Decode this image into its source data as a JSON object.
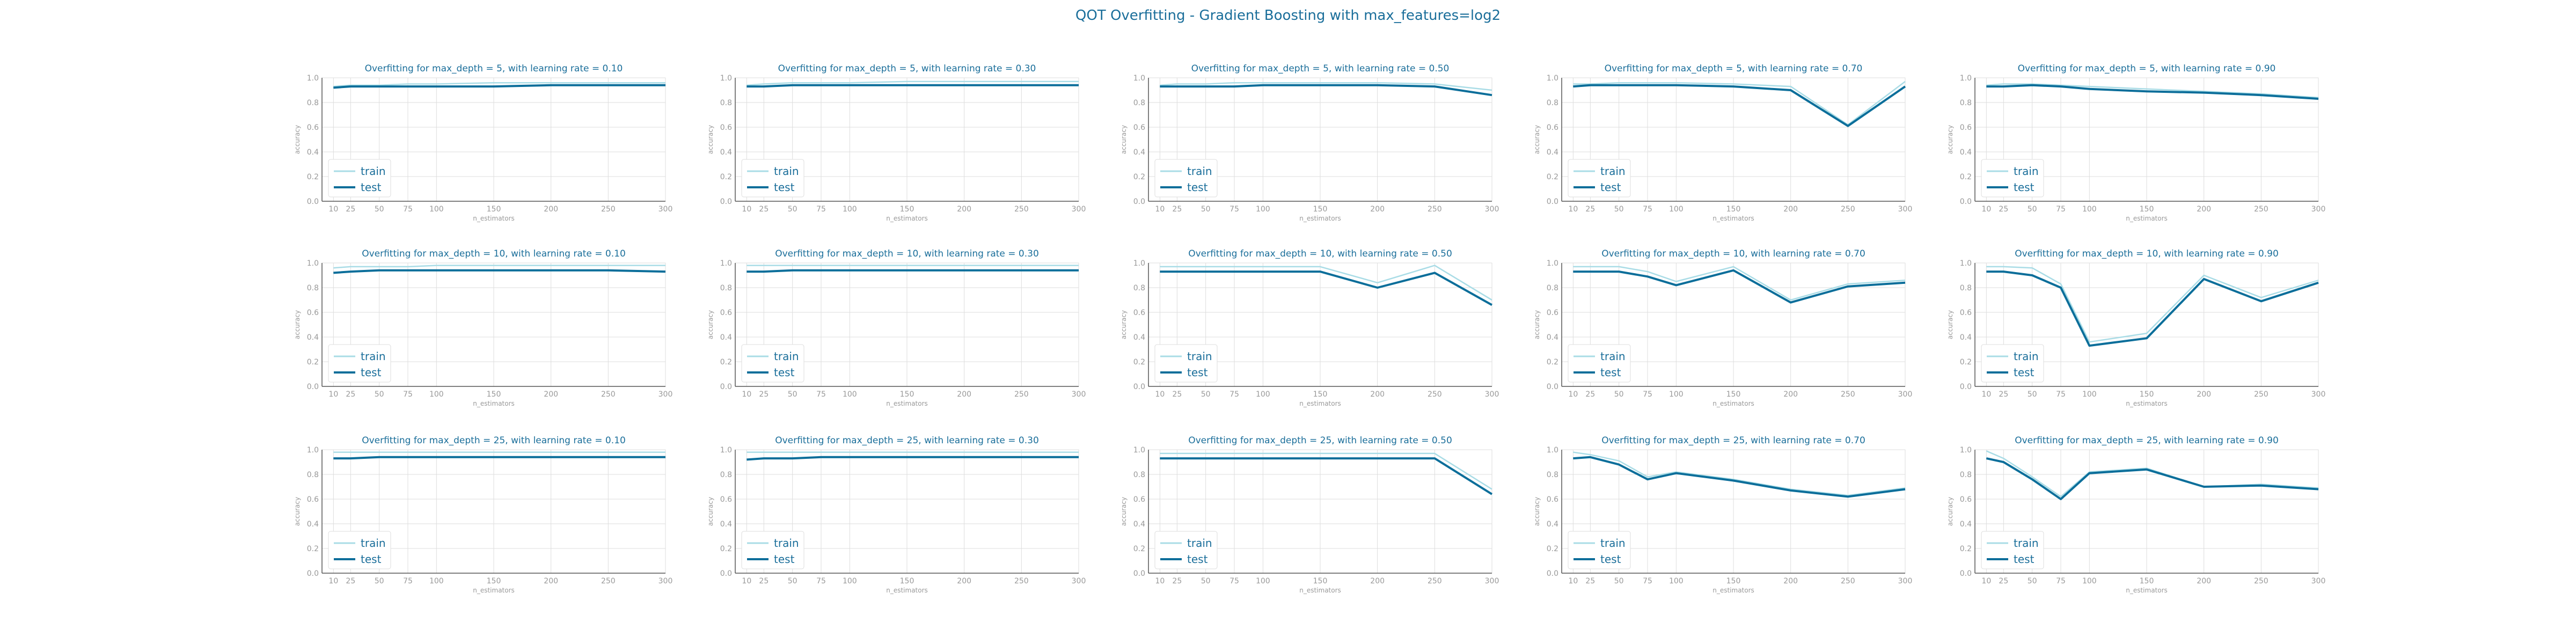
{
  "title": "QOT Overfitting - Gradient Boosting with max_features=log2",
  "colors": {
    "train": "#a9dce6",
    "test": "#0b6e9a",
    "title": "#1a6e9a",
    "axis_text": "#999999",
    "grid": "#dddddd"
  },
  "chart_data": [
    {
      "type": "line",
      "title": "Overfitting for max_depth = 5, with learning rate = 0.10",
      "xlabel": "n_estimators",
      "ylabel": "accuracy",
      "x": [
        10,
        25,
        50,
        75,
        100,
        150,
        200,
        250,
        300
      ],
      "ylim": [
        0.0,
        1.0
      ],
      "grid": true,
      "legend": "lower-left",
      "series": [
        {
          "name": "train",
          "values": [
            0.93,
            0.94,
            0.94,
            0.95,
            0.95,
            0.96,
            0.96,
            0.96,
            0.96
          ]
        },
        {
          "name": "test",
          "values": [
            0.92,
            0.93,
            0.93,
            0.93,
            0.93,
            0.93,
            0.94,
            0.94,
            0.94
          ]
        }
      ]
    },
    {
      "type": "line",
      "title": "Overfitting for max_depth = 5, with learning rate = 0.30",
      "xlabel": "n_estimators",
      "ylabel": "accuracy",
      "x": [
        10,
        25,
        50,
        75,
        100,
        150,
        200,
        250,
        300
      ],
      "ylim": [
        0.0,
        1.0
      ],
      "grid": true,
      "legend": "lower-left",
      "series": [
        {
          "name": "train",
          "values": [
            0.94,
            0.95,
            0.96,
            0.96,
            0.96,
            0.97,
            0.97,
            0.97,
            0.97
          ]
        },
        {
          "name": "test",
          "values": [
            0.93,
            0.93,
            0.94,
            0.94,
            0.94,
            0.94,
            0.94,
            0.94,
            0.94
          ]
        }
      ]
    },
    {
      "type": "line",
      "title": "Overfitting for max_depth = 5, with learning rate = 0.50",
      "xlabel": "n_estimators",
      "ylabel": "accuracy",
      "x": [
        10,
        25,
        50,
        75,
        100,
        150,
        200,
        250,
        300
      ],
      "ylim": [
        0.0,
        1.0
      ],
      "grid": true,
      "legend": "lower-left",
      "series": [
        {
          "name": "train",
          "values": [
            0.94,
            0.95,
            0.95,
            0.96,
            0.96,
            0.96,
            0.96,
            0.95,
            0.9
          ]
        },
        {
          "name": "test",
          "values": [
            0.93,
            0.93,
            0.93,
            0.93,
            0.94,
            0.94,
            0.94,
            0.93,
            0.86
          ]
        }
      ]
    },
    {
      "type": "line",
      "title": "Overfitting for max_depth = 5, with learning rate = 0.70",
      "xlabel": "n_estimators",
      "ylabel": "accuracy",
      "x": [
        10,
        25,
        50,
        75,
        100,
        150,
        200,
        250,
        300
      ],
      "ylim": [
        0.0,
        1.0
      ],
      "grid": true,
      "legend": "lower-left",
      "series": [
        {
          "name": "train",
          "values": [
            0.95,
            0.95,
            0.96,
            0.96,
            0.96,
            0.95,
            0.93,
            0.62,
            0.97
          ]
        },
        {
          "name": "test",
          "values": [
            0.93,
            0.94,
            0.94,
            0.94,
            0.94,
            0.93,
            0.9,
            0.61,
            0.93
          ]
        }
      ]
    },
    {
      "type": "line",
      "title": "Overfitting for max_depth = 5, with learning rate = 0.90",
      "xlabel": "n_estimators",
      "ylabel": "accuracy",
      "x": [
        10,
        25,
        50,
        75,
        100,
        150,
        200,
        250,
        300
      ],
      "ylim": [
        0.0,
        1.0
      ],
      "grid": true,
      "legend": "lower-left",
      "series": [
        {
          "name": "train",
          "values": [
            0.94,
            0.95,
            0.95,
            0.94,
            0.93,
            0.91,
            0.89,
            0.87,
            0.84
          ]
        },
        {
          "name": "test",
          "values": [
            0.93,
            0.93,
            0.94,
            0.93,
            0.91,
            0.89,
            0.88,
            0.86,
            0.83
          ]
        }
      ]
    },
    {
      "type": "line",
      "title": "Overfitting for max_depth = 10, with learning rate = 0.10",
      "xlabel": "n_estimators",
      "ylabel": "accuracy",
      "x": [
        10,
        25,
        50,
        75,
        100,
        150,
        200,
        250,
        300
      ],
      "ylim": [
        0.0,
        1.0
      ],
      "grid": true,
      "legend": "lower-left",
      "series": [
        {
          "name": "train",
          "values": [
            0.96,
            0.97,
            0.97,
            0.97,
            0.98,
            0.98,
            0.98,
            0.98,
            0.98
          ]
        },
        {
          "name": "test",
          "values": [
            0.92,
            0.93,
            0.94,
            0.94,
            0.94,
            0.94,
            0.94,
            0.94,
            0.93
          ]
        }
      ]
    },
    {
      "type": "line",
      "title": "Overfitting for max_depth = 10, with learning rate = 0.30",
      "xlabel": "n_estimators",
      "ylabel": "accuracy",
      "x": [
        10,
        25,
        50,
        75,
        100,
        150,
        200,
        250,
        300
      ],
      "ylim": [
        0.0,
        1.0
      ],
      "grid": true,
      "legend": "lower-left",
      "series": [
        {
          "name": "train",
          "values": [
            0.98,
            0.98,
            0.98,
            0.98,
            0.98,
            0.98,
            0.98,
            0.98,
            0.98
          ]
        },
        {
          "name": "test",
          "values": [
            0.93,
            0.93,
            0.94,
            0.94,
            0.94,
            0.94,
            0.94,
            0.94,
            0.94
          ]
        }
      ]
    },
    {
      "type": "line",
      "title": "Overfitting for max_depth = 10, with learning rate = 0.50",
      "xlabel": "n_estimators",
      "ylabel": "accuracy",
      "x": [
        10,
        25,
        50,
        75,
        100,
        150,
        200,
        250,
        300
      ],
      "ylim": [
        0.0,
        1.0
      ],
      "grid": true,
      "legend": "lower-left",
      "series": [
        {
          "name": "train",
          "values": [
            0.97,
            0.97,
            0.97,
            0.97,
            0.97,
            0.97,
            0.84,
            0.98,
            0.7
          ]
        },
        {
          "name": "test",
          "values": [
            0.93,
            0.93,
            0.93,
            0.93,
            0.93,
            0.93,
            0.8,
            0.92,
            0.66
          ]
        }
      ]
    },
    {
      "type": "line",
      "title": "Overfitting for max_depth = 10, with learning rate = 0.70",
      "xlabel": "n_estimators",
      "ylabel": "accuracy",
      "x": [
        10,
        25,
        50,
        75,
        100,
        150,
        200,
        250,
        300
      ],
      "ylim": [
        0.0,
        1.0
      ],
      "grid": true,
      "legend": "lower-left",
      "series": [
        {
          "name": "train",
          "values": [
            0.97,
            0.97,
            0.97,
            0.93,
            0.85,
            0.97,
            0.7,
            0.83,
            0.86
          ]
        },
        {
          "name": "test",
          "values": [
            0.93,
            0.93,
            0.93,
            0.89,
            0.82,
            0.94,
            0.68,
            0.81,
            0.84
          ]
        }
      ]
    },
    {
      "type": "line",
      "title": "Overfitting for max_depth = 10, with learning rate = 0.90",
      "xlabel": "n_estimators",
      "ylabel": "accuracy",
      "x": [
        10,
        25,
        50,
        75,
        100,
        150,
        200,
        250,
        300
      ],
      "ylim": [
        0.0,
        1.0
      ],
      "grid": true,
      "legend": "lower-left",
      "series": [
        {
          "name": "train",
          "values": [
            0.97,
            0.97,
            0.96,
            0.83,
            0.36,
            0.43,
            0.9,
            0.72,
            0.86
          ]
        },
        {
          "name": "test",
          "values": [
            0.93,
            0.93,
            0.9,
            0.8,
            0.33,
            0.39,
            0.87,
            0.69,
            0.84
          ]
        }
      ]
    },
    {
      "type": "line",
      "title": "Overfitting for max_depth = 25, with learning rate = 0.10",
      "xlabel": "n_estimators",
      "ylabel": "accuracy",
      "x": [
        10,
        25,
        50,
        75,
        100,
        150,
        200,
        250,
        300
      ],
      "ylim": [
        0.0,
        1.0
      ],
      "grid": true,
      "legend": "lower-left",
      "series": [
        {
          "name": "train",
          "values": [
            0.98,
            0.98,
            0.98,
            0.98,
            0.98,
            0.98,
            0.98,
            0.98,
            0.98
          ]
        },
        {
          "name": "test",
          "values": [
            0.93,
            0.93,
            0.94,
            0.94,
            0.94,
            0.94,
            0.94,
            0.94,
            0.94
          ]
        }
      ]
    },
    {
      "type": "line",
      "title": "Overfitting for max_depth = 25, with learning rate = 0.30",
      "xlabel": "n_estimators",
      "ylabel": "accuracy",
      "x": [
        10,
        25,
        50,
        75,
        100,
        150,
        200,
        250,
        300
      ],
      "ylim": [
        0.0,
        1.0
      ],
      "grid": true,
      "legend": "lower-left",
      "series": [
        {
          "name": "train",
          "values": [
            0.98,
            0.98,
            0.98,
            0.98,
            0.98,
            0.98,
            0.98,
            0.98,
            0.98
          ]
        },
        {
          "name": "test",
          "values": [
            0.92,
            0.93,
            0.93,
            0.94,
            0.94,
            0.94,
            0.94,
            0.94,
            0.94
          ]
        }
      ]
    },
    {
      "type": "line",
      "title": "Overfitting for max_depth = 25, with learning rate = 0.50",
      "xlabel": "n_estimators",
      "ylabel": "accuracy",
      "x": [
        10,
        25,
        50,
        75,
        100,
        150,
        200,
        250,
        300
      ],
      "ylim": [
        0.0,
        1.0
      ],
      "grid": true,
      "legend": "lower-left",
      "series": [
        {
          "name": "train",
          "values": [
            0.97,
            0.97,
            0.97,
            0.97,
            0.97,
            0.97,
            0.97,
            0.97,
            0.68
          ]
        },
        {
          "name": "test",
          "values": [
            0.93,
            0.93,
            0.93,
            0.93,
            0.93,
            0.93,
            0.93,
            0.93,
            0.64
          ]
        }
      ]
    },
    {
      "type": "line",
      "title": "Overfitting for max_depth = 25, with learning rate = 0.70",
      "xlabel": "n_estimators",
      "ylabel": "accuracy",
      "x": [
        10,
        25,
        50,
        75,
        100,
        150,
        200,
        250,
        300
      ],
      "ylim": [
        0.0,
        1.0
      ],
      "grid": true,
      "legend": "lower-left",
      "series": [
        {
          "name": "train",
          "values": [
            0.98,
            0.96,
            0.91,
            0.78,
            0.82,
            0.76,
            0.68,
            0.63,
            0.69
          ]
        },
        {
          "name": "test",
          "values": [
            0.93,
            0.94,
            0.88,
            0.76,
            0.81,
            0.75,
            0.67,
            0.62,
            0.68
          ]
        }
      ]
    },
    {
      "type": "line",
      "title": "Overfitting for max_depth = 25, with learning rate = 0.90",
      "xlabel": "n_estimators",
      "ylabel": "accuracy",
      "x": [
        10,
        25,
        50,
        75,
        100,
        150,
        200,
        250,
        300
      ],
      "ylim": [
        0.0,
        1.0
      ],
      "grid": true,
      "legend": "lower-left",
      "series": [
        {
          "name": "train",
          "values": [
            0.99,
            0.93,
            0.78,
            0.62,
            0.82,
            0.85,
            0.7,
            0.72,
            0.69
          ]
        },
        {
          "name": "test",
          "values": [
            0.93,
            0.9,
            0.76,
            0.6,
            0.81,
            0.84,
            0.7,
            0.71,
            0.68
          ]
        }
      ]
    }
  ]
}
